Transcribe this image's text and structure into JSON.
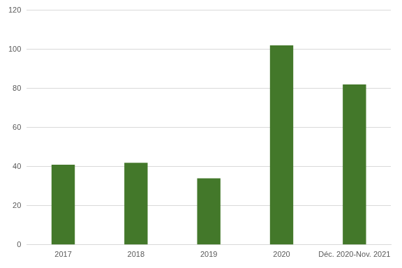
{
  "chart_data": {
    "type": "bar",
    "categories": [
      "2017",
      "2018",
      "2019",
      "2020",
      "Déc. 2020-Nov. 2021"
    ],
    "values": [
      41,
      42,
      34,
      102,
      82
    ],
    "color": "#43782a",
    "ylim": [
      0,
      120
    ],
    "yticks": [
      0,
      20,
      40,
      60,
      80,
      100,
      120
    ],
    "grid": true
  }
}
